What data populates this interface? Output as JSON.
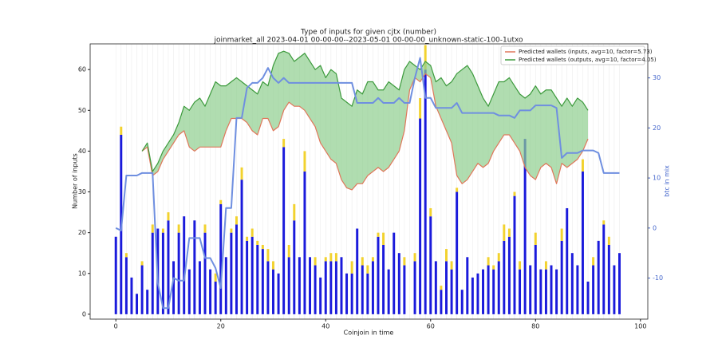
{
  "chart_data": {
    "type": "bar",
    "title": "Type of inputs for given cjtx (number)",
    "subtitle": "joinmarket_all 2023-04-01 00-00-00--2023-05-01 00-00-00_unknown-static-100-1utxo",
    "x_label": "Coinjoin in time",
    "y_label": "Number of inputs",
    "y2_label": "btc in mix",
    "xlim": [
      -4.9,
      101.4
    ],
    "ylim": [
      -1.2,
      66.3
    ],
    "y2lim": [
      -18.2,
      36.8
    ],
    "xticks": [
      0,
      20,
      40,
      60,
      80,
      100
    ],
    "yticks": [
      0,
      10,
      20,
      30,
      40,
      50,
      60
    ],
    "y2ticks": [
      -10,
      0,
      10,
      20,
      30
    ],
    "x": [
      0,
      1,
      2,
      3,
      4,
      5,
      6,
      7,
      8,
      9,
      10,
      11,
      12,
      13,
      14,
      15,
      16,
      17,
      18,
      19,
      20,
      21,
      22,
      23,
      24,
      25,
      26,
      27,
      28,
      29,
      30,
      31,
      32,
      33,
      34,
      35,
      36,
      37,
      38,
      39,
      40,
      41,
      42,
      43,
      44,
      45,
      46,
      47,
      48,
      49,
      50,
      51,
      52,
      53,
      54,
      55,
      56,
      57,
      58,
      59,
      60,
      61,
      62,
      63,
      64,
      65,
      66,
      67,
      68,
      69,
      70,
      71,
      72,
      73,
      74,
      75,
      76,
      77,
      78,
      79,
      80,
      81,
      82,
      83,
      84,
      85,
      86,
      87,
      88,
      89,
      90,
      91,
      92,
      93,
      94,
      95,
      96
    ],
    "bars": [
      {
        "color": "#1a1adb",
        "values": [
          19,
          44,
          14,
          9,
          5,
          12,
          6,
          20,
          21,
          20,
          23,
          13,
          20,
          24,
          11,
          23,
          13,
          20,
          11,
          8,
          27,
          14,
          20,
          22,
          33,
          18,
          19,
          17,
          16,
          13,
          11,
          10,
          41,
          14,
          23,
          14,
          35,
          14,
          12,
          9,
          13,
          13,
          13,
          14,
          10,
          10,
          21,
          12,
          10,
          13,
          19,
          17,
          11,
          20,
          15,
          12,
          0,
          13,
          48,
          60,
          24,
          13,
          6,
          13,
          11,
          30,
          6,
          14,
          9,
          10,
          11,
          12,
          11,
          13,
          18,
          19,
          29,
          11,
          43,
          12,
          17,
          11,
          11,
          12,
          11,
          18,
          26,
          15,
          12,
          35,
          8,
          12,
          18,
          22,
          17,
          12,
          15
        ]
      },
      {
        "color": "#f2d22e",
        "values": [
          0,
          2,
          1,
          0,
          0,
          1,
          0,
          2,
          0,
          1,
          2,
          0,
          2,
          0,
          0,
          0,
          0,
          2,
          0,
          2,
          1,
          0,
          1,
          2,
          3,
          1,
          2,
          1,
          1,
          3,
          2,
          0,
          2,
          3,
          4,
          0,
          5,
          0,
          2,
          0,
          1,
          2,
          2,
          0,
          0,
          3,
          0,
          2,
          2,
          1,
          1,
          3,
          0,
          0,
          0,
          2,
          0,
          2,
          5,
          6,
          2,
          0,
          1,
          3,
          2,
          1,
          0,
          0,
          0,
          0,
          0,
          2,
          1,
          2,
          4,
          2,
          1,
          2,
          0,
          0,
          3,
          0,
          2,
          0,
          0,
          3,
          0,
          0,
          0,
          3,
          0,
          2,
          0,
          1,
          2,
          0,
          0
        ]
      }
    ],
    "series": [
      {
        "name": "Predicted wallets (inputs, avg=10, factor=5.73)",
        "color": "#e0775a",
        "values": [
          null,
          null,
          null,
          null,
          null,
          40,
          41,
          34,
          35,
          38,
          40,
          42,
          44,
          45,
          41,
          40,
          41,
          41,
          41,
          41,
          41,
          45,
          48,
          48,
          48,
          47,
          45,
          44,
          48,
          48,
          45,
          46,
          50,
          52,
          51,
          51,
          50,
          48,
          46,
          42,
          40,
          38,
          37,
          33,
          31,
          30.5,
          32,
          32,
          34,
          35,
          36,
          35,
          36,
          38,
          40,
          45,
          55,
          58,
          57,
          59,
          58,
          51,
          48,
          45,
          42,
          34,
          32,
          33,
          35,
          37,
          36,
          37,
          40,
          42,
          44,
          44,
          42,
          40,
          36,
          34,
          33,
          36,
          37,
          36,
          32,
          37,
          36,
          37,
          38,
          40,
          43,
          null,
          null,
          null,
          null,
          null,
          null
        ]
      },
      {
        "name": "Predicted wallets (outputs, avg=10, factor=4.05)",
        "color": "#3c9a3c",
        "values": [
          null,
          null,
          null,
          null,
          null,
          40,
          42,
          35,
          37,
          40,
          42,
          44,
          47,
          51,
          50,
          52,
          53,
          51,
          54,
          57,
          56,
          56,
          57,
          58,
          57,
          56,
          55,
          54,
          57,
          56,
          61,
          64,
          64.5,
          64,
          62,
          63,
          64,
          62,
          60,
          61,
          58,
          60,
          59,
          53,
          52,
          51,
          55,
          54,
          57,
          57,
          55,
          55,
          57,
          56,
          55,
          60,
          62,
          61,
          60,
          62,
          61,
          57,
          58,
          56,
          57,
          59,
          60,
          61,
          59,
          56,
          53,
          51,
          54,
          57,
          57,
          58,
          56,
          54,
          53,
          54,
          56,
          54,
          55,
          55,
          53,
          51,
          53,
          51,
          53,
          52,
          50,
          null,
          null,
          null,
          null,
          null,
          null
        ]
      }
    ],
    "fill_color": "#8fcf8f",
    "btc": {
      "color": "#6f8fe0",
      "axis": "y2",
      "values": [
        0,
        -0.5,
        10.5,
        10.5,
        10.5,
        11,
        11,
        11,
        -11,
        -16,
        -16,
        -10,
        -10.5,
        -10.5,
        -2,
        -2,
        -2,
        -6,
        -6,
        -8,
        -12,
        4,
        4,
        22,
        22,
        28,
        29,
        29,
        30,
        32,
        30,
        29,
        30,
        29,
        29,
        29,
        29,
        29,
        29,
        29,
        29,
        29,
        29,
        29,
        29,
        29,
        25,
        25,
        25,
        25,
        26,
        25,
        25,
        25,
        26,
        25,
        25,
        30,
        34,
        26,
        26,
        24,
        24,
        24,
        24,
        25,
        23,
        23,
        23,
        23,
        23,
        23,
        23,
        22.5,
        22.5,
        22.5,
        22,
        23.5,
        23.5,
        23.5,
        24.5,
        24.5,
        24.5,
        24.5,
        24,
        14,
        15,
        15,
        15,
        15.5,
        15.5,
        15.5,
        15,
        11,
        11,
        11,
        11
      ]
    },
    "legend": "upper right"
  }
}
